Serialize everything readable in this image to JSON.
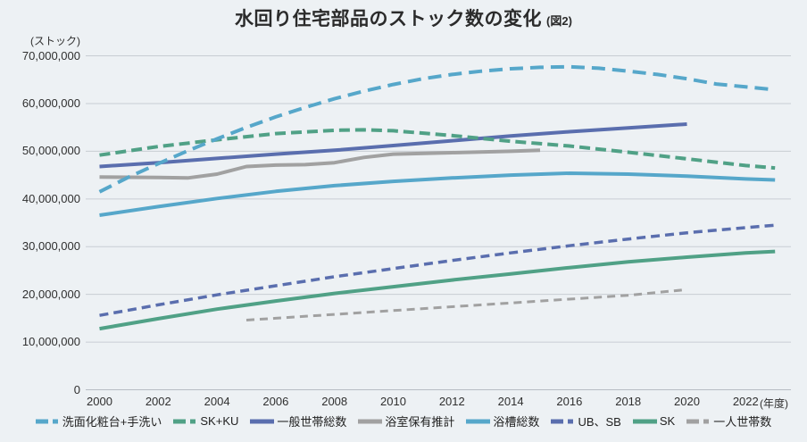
{
  "title": {
    "main": "水回り住宅部品のストック数の変化",
    "suffix": "(図2)"
  },
  "axes": {
    "y_unit": "(ストック)",
    "x_unit": "(年度)",
    "y_ticks": [
      {
        "value": 70000000,
        "label": "70,000,000"
      },
      {
        "value": 60000000,
        "label": "60,000,000"
      },
      {
        "value": 50000000,
        "label": "50,000,000"
      },
      {
        "value": 40000000,
        "label": "40,000,000"
      },
      {
        "value": 30000000,
        "label": "30,000,000"
      },
      {
        "value": 20000000,
        "label": "20,000,000"
      },
      {
        "value": 10000000,
        "label": "10,000,000"
      },
      {
        "value": 0,
        "label": "0"
      }
    ],
    "x_ticks": [
      2000,
      2002,
      2004,
      2006,
      2008,
      2010,
      2012,
      2014,
      2016,
      2018,
      2020,
      2022
    ]
  },
  "colors": {
    "background": "#edf1f4",
    "grid": "#c8cdd3",
    "axis": "#b7bdc4",
    "title_text": "#2b2b2b",
    "tick_text": "#2f2f2f",
    "lightblue": "#56a7ca",
    "green": "#50a186",
    "slate": "#5a6eae",
    "gray": "#a1a1a1"
  },
  "chart_data": {
    "type": "line",
    "title": "水回り住宅部品のストック数の変化 (図2)",
    "xlabel": "年度",
    "ylabel": "ストック",
    "xlim": [
      2000,
      2023
    ],
    "ylim": [
      0,
      70000000
    ],
    "grid": "horizontal",
    "legend_position": "bottom",
    "series": [
      {
        "id": "senmen",
        "label": "洗面化粧台+手洗い",
        "color": "#56a7ca",
        "style": "dashed",
        "dash": "15 8",
        "width": 4,
        "points": [
          [
            2000,
            41500000
          ],
          [
            2001,
            44600000
          ],
          [
            2002,
            47400000
          ],
          [
            2003,
            50100000
          ],
          [
            2004,
            52600000
          ],
          [
            2005,
            55000000
          ],
          [
            2006,
            57200000
          ],
          [
            2007,
            59200000
          ],
          [
            2008,
            61000000
          ],
          [
            2009,
            62600000
          ],
          [
            2010,
            64000000
          ],
          [
            2011,
            65200000
          ],
          [
            2012,
            66100000
          ],
          [
            2013,
            66800000
          ],
          [
            2014,
            67300000
          ],
          [
            2015,
            67600000
          ],
          [
            2016,
            67700000
          ],
          [
            2017,
            67400000
          ],
          [
            2018,
            66800000
          ],
          [
            2019,
            66100000
          ],
          [
            2020,
            65200000
          ],
          [
            2021,
            64100000
          ],
          [
            2022,
            63500000
          ],
          [
            2023,
            62900000
          ]
        ]
      },
      {
        "id": "skku",
        "label": "SK+KU",
        "color": "#50a186",
        "style": "dashed",
        "dash": "12 6",
        "width": 4,
        "points": [
          [
            2000,
            49200000
          ],
          [
            2002,
            51000000
          ],
          [
            2004,
            52400000
          ],
          [
            2006,
            53700000
          ],
          [
            2008,
            54400000
          ],
          [
            2009,
            54500000
          ],
          [
            2010,
            54300000
          ],
          [
            2012,
            53300000
          ],
          [
            2014,
            52100000
          ],
          [
            2016,
            51100000
          ],
          [
            2018,
            49800000
          ],
          [
            2020,
            48400000
          ],
          [
            2022,
            47000000
          ],
          [
            2023,
            46500000
          ]
        ]
      },
      {
        "id": "ippan-setai",
        "label": "一般世帯総数",
        "color": "#5a6eae",
        "style": "solid",
        "dash": null,
        "width": 4,
        "points": [
          [
            2000,
            46800000
          ],
          [
            2002,
            47600000
          ],
          [
            2004,
            48500000
          ],
          [
            2006,
            49400000
          ],
          [
            2008,
            50200000
          ],
          [
            2010,
            51200000
          ],
          [
            2012,
            52200000
          ],
          [
            2014,
            53200000
          ],
          [
            2016,
            54100000
          ],
          [
            2018,
            54900000
          ],
          [
            2020,
            55700000
          ]
        ]
      },
      {
        "id": "yokushitsu-hoyu",
        "label": "浴室保有推計",
        "color": "#a1a1a1",
        "style": "solid",
        "dash": null,
        "width": 4,
        "points": [
          [
            2000,
            44600000
          ],
          [
            2002,
            44500000
          ],
          [
            2003,
            44400000
          ],
          [
            2004,
            45200000
          ],
          [
            2005,
            46800000
          ],
          [
            2006,
            47100000
          ],
          [
            2007,
            47200000
          ],
          [
            2008,
            47600000
          ],
          [
            2009,
            48700000
          ],
          [
            2010,
            49400000
          ],
          [
            2012,
            49700000
          ],
          [
            2014,
            50000000
          ],
          [
            2015,
            50200000
          ]
        ]
      },
      {
        "id": "yokusou",
        "label": "浴槽総数",
        "color": "#56a7ca",
        "style": "solid",
        "dash": null,
        "width": 4,
        "points": [
          [
            2000,
            36600000
          ],
          [
            2002,
            38400000
          ],
          [
            2004,
            40100000
          ],
          [
            2006,
            41600000
          ],
          [
            2008,
            42800000
          ],
          [
            2010,
            43700000
          ],
          [
            2012,
            44400000
          ],
          [
            2014,
            45000000
          ],
          [
            2016,
            45400000
          ],
          [
            2018,
            45200000
          ],
          [
            2020,
            44800000
          ],
          [
            2022,
            44200000
          ],
          [
            2023,
            44000000
          ]
        ]
      },
      {
        "id": "ub-sb",
        "label": "UB、SB",
        "color": "#5a6eae",
        "style": "dashed",
        "dash": "10 6",
        "width": 3.5,
        "points": [
          [
            2000,
            15600000
          ],
          [
            2002,
            17800000
          ],
          [
            2004,
            19900000
          ],
          [
            2006,
            21800000
          ],
          [
            2008,
            23700000
          ],
          [
            2010,
            25400000
          ],
          [
            2012,
            27100000
          ],
          [
            2014,
            28700000
          ],
          [
            2016,
            30200000
          ],
          [
            2018,
            31600000
          ],
          [
            2020,
            32900000
          ],
          [
            2022,
            34000000
          ],
          [
            2023,
            34500000
          ]
        ]
      },
      {
        "id": "sk",
        "label": "SK",
        "color": "#50a186",
        "style": "solid",
        "dash": null,
        "width": 4,
        "points": [
          [
            2000,
            12800000
          ],
          [
            2002,
            14900000
          ],
          [
            2004,
            16900000
          ],
          [
            2006,
            18600000
          ],
          [
            2008,
            20200000
          ],
          [
            2010,
            21600000
          ],
          [
            2012,
            23000000
          ],
          [
            2014,
            24300000
          ],
          [
            2016,
            25600000
          ],
          [
            2018,
            26800000
          ],
          [
            2020,
            27800000
          ],
          [
            2022,
            28700000
          ],
          [
            2023,
            29000000
          ]
        ]
      },
      {
        "id": "hitori-setai",
        "label": "一人世帯数",
        "color": "#a1a1a1",
        "style": "dashed",
        "dash": "9 6",
        "width": 3,
        "points": [
          [
            2005,
            14600000
          ],
          [
            2006,
            15000000
          ],
          [
            2008,
            15800000
          ],
          [
            2010,
            16600000
          ],
          [
            2012,
            17400000
          ],
          [
            2014,
            18200000
          ],
          [
            2016,
            19000000
          ],
          [
            2018,
            19800000
          ],
          [
            2020,
            21000000
          ]
        ]
      }
    ]
  }
}
